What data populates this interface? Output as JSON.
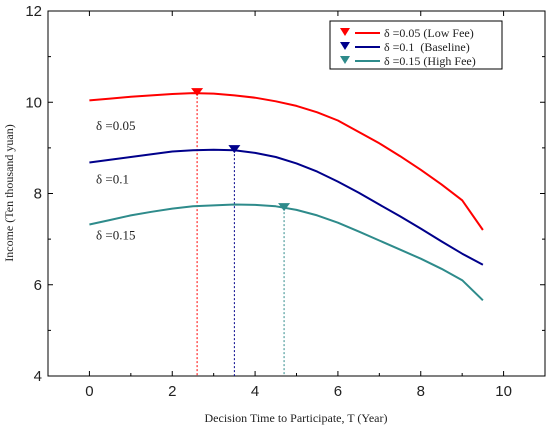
{
  "chart_data": {
    "type": "line",
    "xlabel": "Decision Time to Participate, T (Year)",
    "ylabel": "Income (Ten thousand yuan)",
    "xlim": [
      -1,
      11
    ],
    "ylim": [
      4,
      12
    ],
    "xticks": [
      0,
      2,
      4,
      6,
      8,
      10
    ],
    "yticks": [
      4,
      6,
      8,
      10,
      12
    ],
    "grid": false,
    "legend_position": "top-right",
    "series": [
      {
        "name": "δ =0.05 (Low Fee)",
        "color": "#ff0000",
        "annotation": "δ =0.05",
        "marker": {
          "x": 2.6,
          "y": 10.2
        },
        "x": [
          0,
          0.5,
          1,
          1.5,
          2,
          2.5,
          3,
          3.5,
          4,
          4.5,
          5,
          5.5,
          6,
          6.5,
          7,
          7.5,
          8,
          8.5,
          9,
          9.5
        ],
        "y": [
          10.04,
          10.08,
          10.12,
          10.15,
          10.18,
          10.2,
          10.19,
          10.15,
          10.1,
          10.02,
          9.92,
          9.78,
          9.6,
          9.35,
          9.1,
          8.82,
          8.52,
          8.2,
          7.85,
          7.2
        ]
      },
      {
        "name": "δ =0.1  (Baseline)",
        "color": "#00008b",
        "annotation": "δ =0.1",
        "marker": {
          "x": 3.5,
          "y": 8.95
        },
        "x": [
          0,
          0.5,
          1,
          1.5,
          2,
          2.5,
          3,
          3.5,
          4,
          4.5,
          5,
          5.5,
          6,
          6.5,
          7,
          7.5,
          8,
          8.5,
          9,
          9.5
        ],
        "y": [
          8.68,
          8.74,
          8.8,
          8.86,
          8.92,
          8.95,
          8.96,
          8.95,
          8.89,
          8.8,
          8.66,
          8.48,
          8.26,
          8.02,
          7.76,
          7.5,
          7.23,
          6.95,
          6.68,
          6.44
        ]
      },
      {
        "name": "δ =0.15 (High Fee)",
        "color": "#2e8b8b",
        "annotation": "δ =0.15",
        "marker": {
          "x": 4.7,
          "y": 7.68
        },
        "x": [
          0,
          0.5,
          1,
          1.5,
          2,
          2.5,
          3,
          3.5,
          4,
          4.5,
          5,
          5.5,
          6,
          6.5,
          7,
          7.5,
          8,
          8.5,
          9,
          9.5
        ],
        "y": [
          7.32,
          7.42,
          7.52,
          7.6,
          7.67,
          7.72,
          7.74,
          7.76,
          7.75,
          7.72,
          7.64,
          7.52,
          7.36,
          7.17,
          6.97,
          6.77,
          6.57,
          6.35,
          6.1,
          5.66
        ]
      }
    ]
  }
}
